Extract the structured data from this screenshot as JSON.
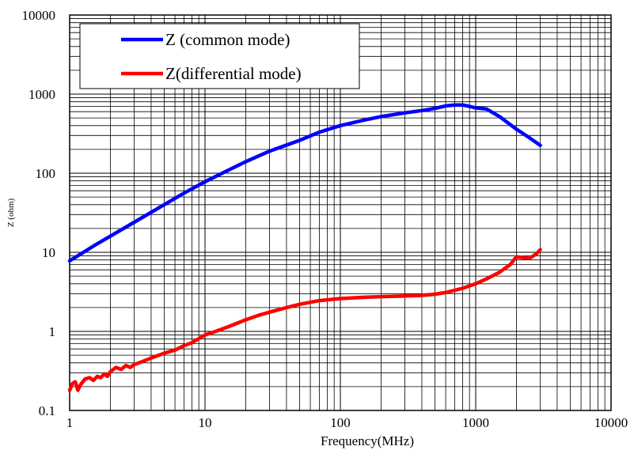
{
  "chart_data": {
    "type": "line",
    "xlabel": "Frequency(MHz)",
    "ylabel": "Z (ohm)",
    "xscale": "log",
    "yscale": "log",
    "xlim": [
      1,
      10000
    ],
    "ylim": [
      0.1,
      10000
    ],
    "xticks": [
      {
        "value": 1,
        "label": "1"
      },
      {
        "value": 10,
        "label": "10"
      },
      {
        "value": 100,
        "label": "100"
      },
      {
        "value": 1000,
        "label": "1000"
      },
      {
        "value": 10000,
        "label": "10000"
      }
    ],
    "yticks": [
      {
        "value": 0.1,
        "label": "0.1"
      },
      {
        "value": 1,
        "label": "1"
      },
      {
        "value": 10,
        "label": "10"
      },
      {
        "value": 100,
        "label": "100"
      },
      {
        "value": 1000,
        "label": "1000"
      },
      {
        "value": 10000,
        "label": "10000"
      }
    ],
    "grid": true,
    "legend_position": "top-left",
    "series": [
      {
        "name": "Z (common mode)",
        "color": "#0000ff",
        "x": [
          1,
          1.5,
          2,
          3,
          5,
          7,
          10,
          15,
          20,
          30,
          50,
          70,
          100,
          150,
          200,
          300,
          400,
          500,
          600,
          700,
          800,
          900,
          1000,
          1200,
          1500,
          2000,
          2500,
          3000
        ],
        "y": [
          7.8,
          12,
          16,
          24,
          40,
          56,
          78,
          110,
          140,
          190,
          260,
          330,
          400,
          470,
          520,
          580,
          620,
          660,
          710,
          730,
          730,
          700,
          670,
          650,
          520,
          360,
          280,
          225
        ]
      },
      {
        "name": "Z(differential mode)",
        "color": "#ff0000",
        "x": [
          1,
          1.05,
          1.1,
          1.15,
          1.2,
          1.3,
          1.4,
          1.5,
          1.6,
          1.7,
          1.8,
          1.9,
          2,
          2.2,
          2.4,
          2.6,
          2.8,
          3,
          3.5,
          4,
          5,
          6,
          7,
          8,
          10,
          12,
          15,
          20,
          25,
          30,
          40,
          50,
          70,
          100,
          150,
          200,
          300,
          400,
          500,
          600,
          700,
          800,
          1000,
          1200,
          1500,
          1800,
          2000,
          2200,
          2500,
          2800,
          3000
        ],
        "y": [
          0.18,
          0.22,
          0.23,
          0.18,
          0.21,
          0.25,
          0.26,
          0.24,
          0.27,
          0.26,
          0.29,
          0.27,
          0.31,
          0.35,
          0.33,
          0.37,
          0.35,
          0.38,
          0.42,
          0.46,
          0.53,
          0.58,
          0.66,
          0.72,
          0.9,
          1.0,
          1.15,
          1.4,
          1.6,
          1.75,
          2.0,
          2.2,
          2.45,
          2.6,
          2.7,
          2.75,
          2.8,
          2.85,
          2.95,
          3.1,
          3.3,
          3.5,
          4.0,
          4.6,
          5.6,
          7.0,
          8.8,
          8.6,
          8.4,
          9.5,
          10.8
        ]
      }
    ]
  }
}
